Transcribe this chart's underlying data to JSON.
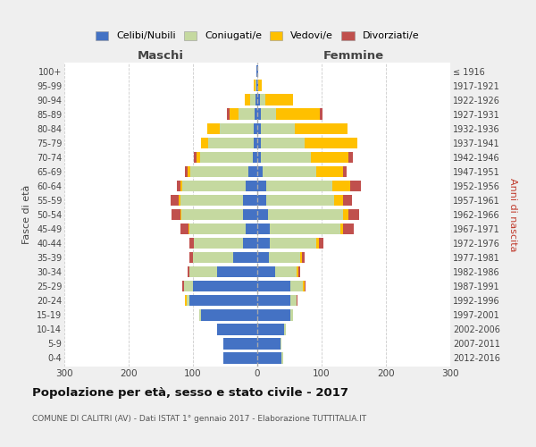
{
  "age_groups": [
    "0-4",
    "5-9",
    "10-14",
    "15-19",
    "20-24",
    "25-29",
    "30-34",
    "35-39",
    "40-44",
    "45-49",
    "50-54",
    "55-59",
    "60-64",
    "65-69",
    "70-74",
    "75-79",
    "80-84",
    "85-89",
    "90-94",
    "95-99",
    "100+"
  ],
  "birth_years": [
    "2012-2016",
    "2007-2011",
    "2002-2006",
    "1997-2001",
    "1992-1996",
    "1987-1991",
    "1982-1986",
    "1977-1981",
    "1972-1976",
    "1967-1971",
    "1962-1966",
    "1957-1961",
    "1952-1956",
    "1947-1951",
    "1942-1946",
    "1937-1941",
    "1932-1936",
    "1927-1931",
    "1922-1926",
    "1917-1921",
    "≤ 1916"
  ],
  "maschi_celibe": [
    53,
    53,
    62,
    88,
    105,
    100,
    62,
    38,
    22,
    18,
    22,
    22,
    18,
    14,
    7,
    5,
    5,
    4,
    3,
    1,
    1
  ],
  "maschi_coniugato": [
    0,
    0,
    0,
    2,
    5,
    14,
    43,
    62,
    76,
    88,
    96,
    98,
    98,
    90,
    82,
    72,
    53,
    25,
    8,
    2,
    0
  ],
  "maschi_vedovo": [
    0,
    0,
    0,
    0,
    3,
    0,
    0,
    0,
    1,
    1,
    2,
    2,
    4,
    4,
    5,
    11,
    20,
    14,
    8,
    2,
    0
  ],
  "maschi_divorziato": [
    0,
    0,
    0,
    0,
    0,
    2,
    3,
    5,
    7,
    12,
    13,
    13,
    5,
    4,
    5,
    0,
    0,
    4,
    0,
    0,
    0
  ],
  "femmine_nubile": [
    38,
    36,
    42,
    52,
    52,
    52,
    28,
    18,
    20,
    19,
    17,
    14,
    14,
    9,
    5,
    5,
    5,
    5,
    4,
    2,
    1
  ],
  "femmine_coniugata": [
    2,
    2,
    2,
    4,
    9,
    19,
    33,
    48,
    72,
    110,
    116,
    106,
    102,
    82,
    78,
    68,
    53,
    24,
    8,
    0,
    0
  ],
  "femmine_vedova": [
    0,
    0,
    0,
    0,
    0,
    2,
    3,
    3,
    4,
    4,
    9,
    14,
    28,
    43,
    58,
    82,
    82,
    68,
    43,
    5,
    0
  ],
  "femmine_divorziata": [
    0,
    0,
    0,
    0,
    2,
    2,
    3,
    5,
    7,
    17,
    17,
    13,
    17,
    5,
    8,
    0,
    0,
    4,
    0,
    0,
    0
  ],
  "colors": {
    "celibe": "#4472c4",
    "coniugato": "#c5d9a0",
    "vedovo": "#ffc000",
    "divorziato": "#c0504d"
  },
  "title": "Popolazione per età, sesso e stato civile - 2017",
  "subtitle": "COMUNE DI CALITRI (AV) - Dati ISTAT 1° gennaio 2017 - Elaborazione TUTTITALIA.IT",
  "legend_labels": [
    "Celibi/Nubili",
    "Coniugati/e",
    "Vedovi/e",
    "Divorziati/e"
  ],
  "xlim": 300,
  "bg_color": "#efefef",
  "plot_bg_color": "#ffffff",
  "grid_color": "#cccccc"
}
